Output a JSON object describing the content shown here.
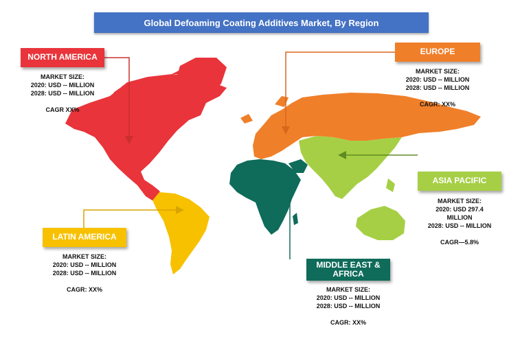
{
  "title": "Global Defoaming Coating Additives Market, By Region",
  "colors": {
    "title_bg": "#4472c4",
    "north_america": "#e8343a",
    "europe": "#f07f2a",
    "asia_pacific": "#a6cf45",
    "latin_america": "#f7c100",
    "mea": "#0f6b5a"
  },
  "regions": {
    "north_america": {
      "label": "NORTH AMERICA",
      "market_size": "MARKET SIZE:",
      "line_2020": "2020: USD --  MILLION",
      "line_2028": "2028: USD -- MILLION",
      "cagr": "CAGR XX%"
    },
    "europe": {
      "label": "EUROPE",
      "market_size": "MARKET SIZE:",
      "line_2020": "2020: USD -- MILLION",
      "line_2028": "2028: USD -- MILLION",
      "cagr": "CAGR: XX%"
    },
    "asia_pacific": {
      "label": "ASIA PACIFIC",
      "market_size": "MARKET SIZE:",
      "line_2020": "2020: USD  297.4",
      "line_2020b": "MILLION",
      "line_2028": "2028: USD -- MILLION",
      "cagr": "CAGR—5.8%"
    },
    "latin_america": {
      "label": "LATIN AMERICA",
      "market_size": "MARKET SIZE:",
      "line_2020": "2020: USD -- MILLION",
      "line_2028": "2028: USD -- MILLION",
      "cagr": "CAGR: XX%"
    },
    "mea": {
      "label": "MIDDLE EAST & AFRICA",
      "market_size": "MARKET SIZE:",
      "line_2020": "2020: USD -- MILLION",
      "line_2028": "2028: USD -- MILLION",
      "cagr": "CAGR: XX%"
    }
  }
}
